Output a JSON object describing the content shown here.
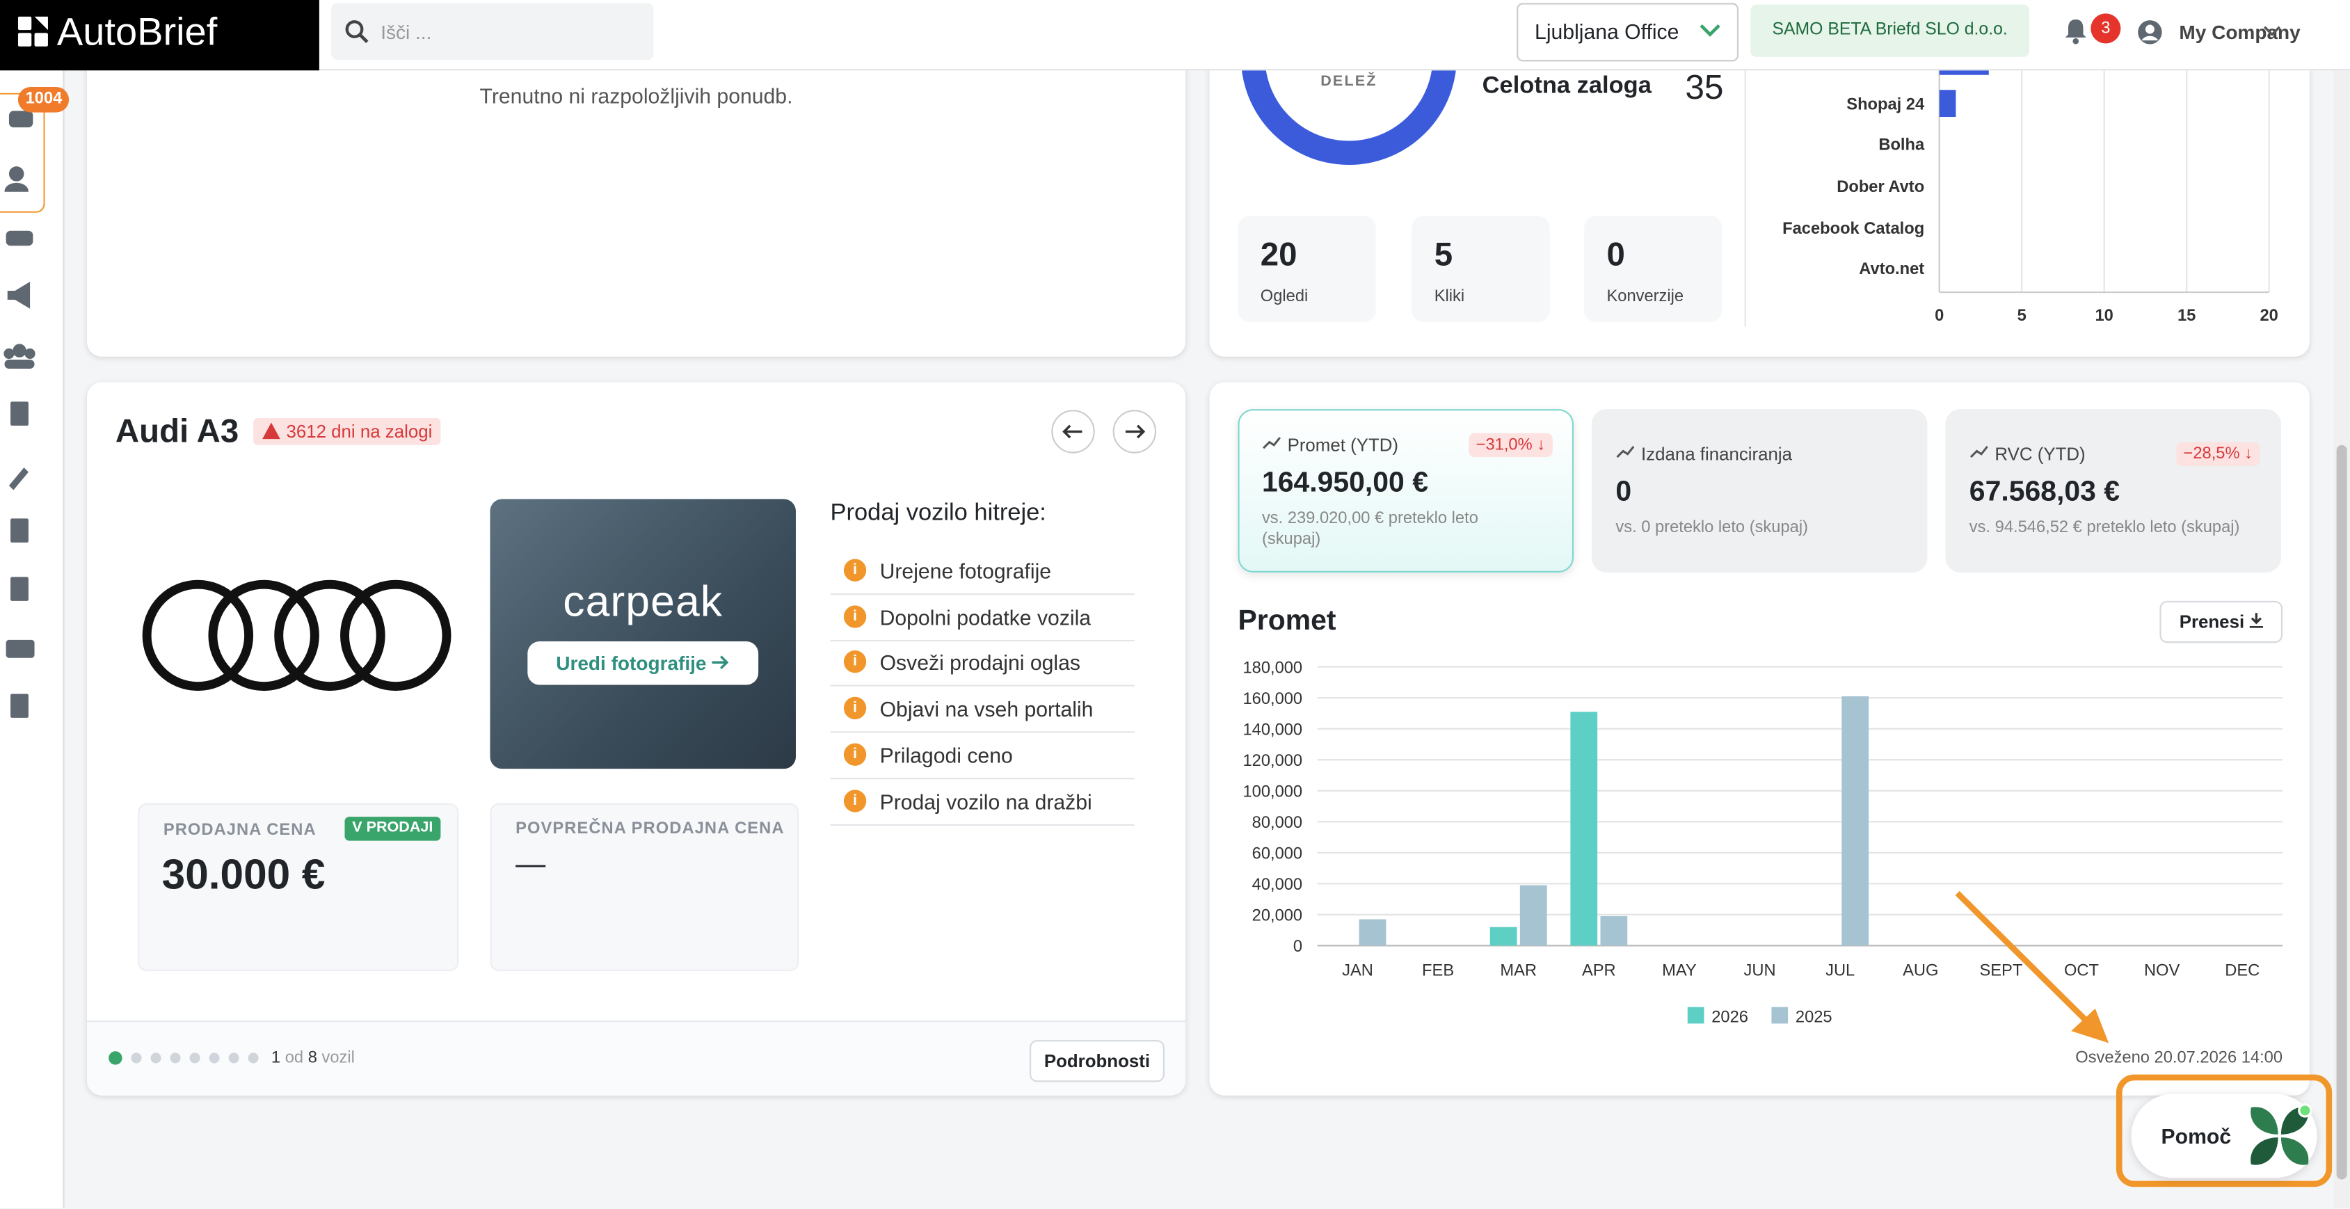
{
  "header": {
    "logo": "AutoBrief",
    "search_placeholder": "Išči ...",
    "office": "Ljubljana Office",
    "company": "SAMO BETA Briefd SLO d.o.o.",
    "notifications": "3",
    "user": "My Company"
  },
  "sidebar": {
    "badge": "1004"
  },
  "offers": {
    "empty_text": "Trenutno ni razpoložljivih ponudb."
  },
  "inventory": {
    "donut_label": "DELEŽ",
    "total_label": "Celotna zaloga",
    "total_value": "35",
    "stats": [
      {
        "value": "20",
        "label": "Ogledi"
      },
      {
        "value": "5",
        "label": "Kliki"
      },
      {
        "value": "0",
        "label": "Konverzije"
      }
    ]
  },
  "portal_chart": {
    "type": "bar",
    "orientation": "horizontal",
    "categories": [
      null,
      "Shopaj 24",
      "Bolha",
      "Dober Avto",
      "Facebook Catalog",
      "Avto.net"
    ],
    "values": [
      3,
      1,
      0,
      0,
      0,
      0
    ],
    "color": "#3b5bdb",
    "xlim": [
      0,
      20
    ],
    "xticks": [
      0,
      5,
      10,
      15,
      20
    ],
    "grid": true
  },
  "vehicle": {
    "title": "Audi A3",
    "stock_days": "3612 dni na zalogi",
    "photo_brand": "carpeak",
    "photo_button": "Uredi fotografije",
    "tips_title": "Prodaj vozilo hitreje:",
    "tips": [
      "Urejene fotografije",
      "Dopolni podatke vozila",
      "Osveži prodajni oglas",
      "Objavi na vseh portalih",
      "Prilagodi ceno",
      "Prodaj vozilo na dražbi"
    ],
    "price_label": "PRODAJNA CENA",
    "price_status": "V PRODAJI",
    "price": "30.000 €",
    "avg_label": "POVPREČNA PRODAJNA CENA",
    "avg_price": "—",
    "page_current": "1",
    "page_of": "od",
    "page_total": "8",
    "page_unit": "vozil",
    "details_button": "Podrobnosti"
  },
  "kpis": [
    {
      "label": "Promet (YTD)",
      "change": "−31,0% ↓",
      "value": "164.950,00 €",
      "compare": "vs. 239.020,00 € preteklo leto (skupaj)"
    },
    {
      "label": "Izdana financiranja",
      "value": "0",
      "compare": "vs. 0 preteklo leto (skupaj)"
    },
    {
      "label": "RVC (YTD)",
      "change": "−28,5% ↓",
      "value": "67.568,03 €",
      "compare": "vs. 94.546,52 € preteklo leto (skupaj)"
    }
  ],
  "revenue_chart": {
    "type": "bar",
    "title": "Promet",
    "button": "Prenesi",
    "categories": [
      "JAN",
      "FEB",
      "MAR",
      "APR",
      "MAY",
      "JUN",
      "JUL",
      "AUG",
      "SEPT",
      "OCT",
      "NOV",
      "DEC"
    ],
    "series": [
      {
        "name": "2026",
        "color": "#5ecfc4",
        "values": [
          0,
          0,
          12000,
          151000,
          0,
          0,
          0,
          0,
          0,
          0,
          0,
          0
        ]
      },
      {
        "name": "2025",
        "color": "#a5c3d1",
        "values": [
          17000,
          0,
          39000,
          19000,
          0,
          0,
          161000,
          0,
          0,
          0,
          0,
          0
        ]
      }
    ],
    "ylim": [
      0,
      180000
    ],
    "yticks": [
      0,
      {
        "value": 20000,
        "label": "20,000"
      },
      {
        "value": 40000,
        "label": "40,000"
      },
      {
        "value": 60000,
        "label": "60,000"
      },
      {
        "value": 80000,
        "label": "80,000"
      },
      {
        "value": 100000,
        "label": "100,000"
      },
      {
        "value": 120000,
        "label": "120,000"
      },
      {
        "value": 140000,
        "label": "140,000"
      },
      {
        "value": 160000,
        "label": "160,000"
      },
      {
        "value": 180000,
        "label": "180,000"
      }
    ],
    "grid": true,
    "legend": "bottom"
  },
  "refreshed": "Osveženo 20.07.2026 14:00",
  "help": "Pomoč"
}
